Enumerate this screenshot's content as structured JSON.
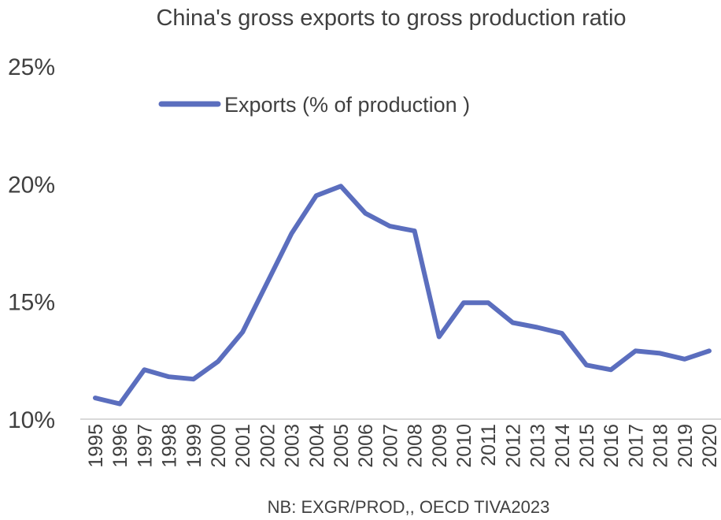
{
  "chart_data": {
    "type": "line",
    "title": "China's gross exports to gross production ratio",
    "note": "NB: EXGR/PROD,, OECD TIVA2023",
    "x": [
      "1995",
      "1996",
      "1997",
      "1998",
      "1999",
      "2000",
      "2001",
      "2002",
      "2003",
      "2004",
      "2005",
      "2006",
      "2007",
      "2008",
      "2009",
      "2010",
      "2011",
      "2012",
      "2013",
      "2014",
      "2015",
      "2016",
      "2017",
      "2018",
      "2019",
      "2020"
    ],
    "series": [
      {
        "name": "Exports (% of production )",
        "color": "#5B6EBE",
        "values": [
          10.9,
          10.65,
          12.1,
          11.8,
          11.7,
          12.45,
          13.7,
          15.8,
          17.9,
          19.5,
          19.9,
          18.75,
          18.2,
          18.0,
          13.5,
          14.95,
          14.95,
          14.1,
          13.9,
          13.65,
          12.3,
          12.1,
          12.9,
          12.8,
          12.55,
          12.9
        ]
      }
    ],
    "yticks": [
      "10%",
      "15%",
      "20%",
      "25%"
    ],
    "ylim": [
      10,
      25
    ],
    "grid": false,
    "legend_position": "top-left"
  }
}
